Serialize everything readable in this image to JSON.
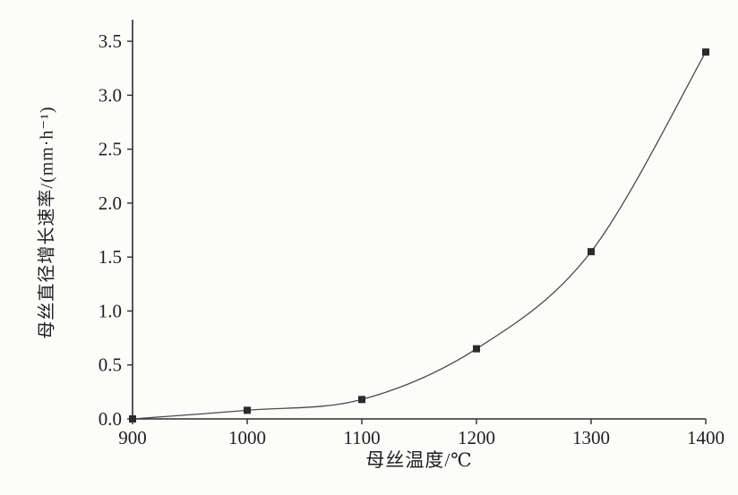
{
  "chart_data": {
    "type": "line",
    "x": [
      900,
      1000,
      1100,
      1200,
      1300,
      1400
    ],
    "y": [
      0.0,
      0.08,
      0.18,
      0.65,
      1.55,
      3.4
    ],
    "x_ticks": [
      900,
      1000,
      1100,
      1200,
      1300,
      1400
    ],
    "y_ticks": [
      0.0,
      0.5,
      1.0,
      1.5,
      2.0,
      2.5,
      3.0,
      3.5
    ],
    "title": "",
    "xlabel": "母丝温度/℃",
    "ylabel": "母丝直径增长速率/(mm·h⁻¹)",
    "xlim": [
      900,
      1400
    ],
    "ylim": [
      0,
      3.5
    ],
    "grid": false,
    "legend": "none",
    "marker": "square",
    "line_color": "#4a4a4a",
    "marker_color": "#2b2b2b",
    "axis_color": "#2e2e2e",
    "background": "#fcfcfa"
  }
}
